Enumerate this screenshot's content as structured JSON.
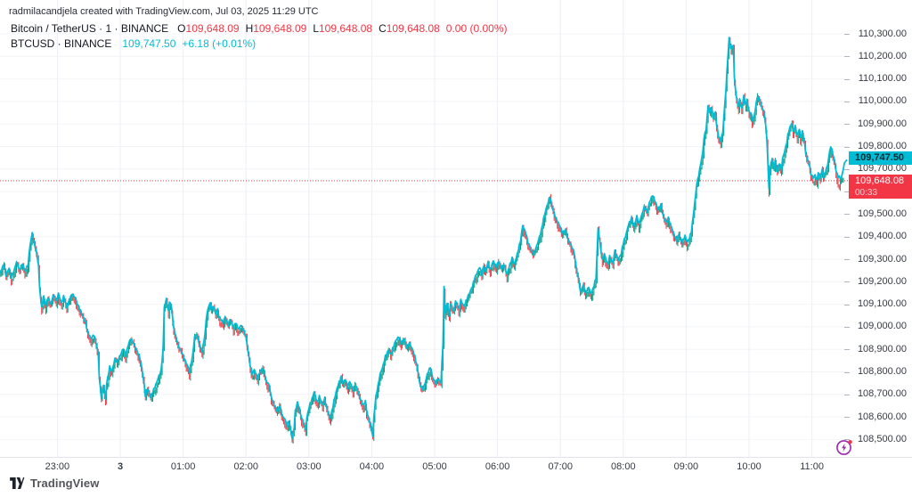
{
  "watermark": {
    "text": "radmilacandjela created with TradingView.com, Jul 03, 2025 11:29 UTC"
  },
  "legend": {
    "row1": {
      "title": "Bitcoin / TetherUS · 1 · BINANCE",
      "ohlc": [
        {
          "k": "O",
          "v": "109,648.09"
        },
        {
          "k": "H",
          "v": "109,648.09"
        },
        {
          "k": "L",
          "v": "109,648.08"
        },
        {
          "k": "C",
          "v": "109,648.08"
        }
      ],
      "change": "0.00 (0.00%)"
    },
    "row2": {
      "title": "BTCUSD · BINANCE",
      "price": "109,747.50",
      "change": "+6.18 (+0.01%)"
    }
  },
  "price_tags": {
    "line": {
      "value": "109,747.50"
    },
    "last": {
      "value": "109,648.08",
      "countdown": "00:33"
    }
  },
  "logo": {
    "text": "TradingView"
  },
  "colors": {
    "line": "#00BCD4",
    "candle_down": "#F23645",
    "candle_up": "#089981",
    "tag_line_bg": "#00BCD4",
    "tag_last_bg": "#F23645",
    "grid_vertical": "#eceff4",
    "grid_horizontal": "#f2f4f7",
    "axis_text": "#363a45",
    "dotted_last_price": "#F23645",
    "streaming_icon": "#9C27B0",
    "streaming_dot": "#F23645"
  },
  "chart_data": {
    "type": "line",
    "title": "Bitcoin / TetherUS 1m BINANCE with BTCUSD BINANCE overlay",
    "series_line_name": "BTCUSD · BINANCE",
    "series_candles_name": "Bitcoin / TetherUS · 1 · BINANCE",
    "interval_minutes": 1,
    "last_price_line": 109747.5,
    "last_price_candles": 109648.08,
    "price_axis_ticks": [
      110300,
      110200,
      110100,
      110000,
      109900,
      109800,
      109700,
      109600,
      109500,
      109400,
      109300,
      109200,
      109100,
      109000,
      108900,
      108800,
      108700,
      108600,
      108500
    ],
    "time_axis_ticks": [
      {
        "t": -60,
        "label": "23:00"
      },
      {
        "t": 0,
        "label": "3",
        "bold": true
      },
      {
        "t": 60,
        "label": "01:00"
      },
      {
        "t": 120,
        "label": "02:00"
      },
      {
        "t": 180,
        "label": "03:00"
      },
      {
        "t": 240,
        "label": "04:00"
      },
      {
        "t": 300,
        "label": "05:00"
      },
      {
        "t": 360,
        "label": "06:00"
      },
      {
        "t": 420,
        "label": "07:00"
      },
      {
        "t": 480,
        "label": "08:00"
      },
      {
        "t": 540,
        "label": "09:00"
      },
      {
        "t": 600,
        "label": "10:00"
      },
      {
        "t": 660,
        "label": "11:00"
      }
    ],
    "t_unit": "minutes from 2025-07-03 00:00 UTC",
    "ylim": [
      108453,
      110450
    ],
    "points": [
      [
        -115,
        109237
      ],
      [
        -111,
        109276
      ],
      [
        -109,
        109229
      ],
      [
        -106,
        109261
      ],
      [
        -104,
        109221
      ],
      [
        -101,
        109253
      ],
      [
        -99,
        109288
      ],
      [
        -96,
        109253
      ],
      [
        -93,
        109280
      ],
      [
        -91,
        109245
      ],
      [
        -88,
        109276
      ],
      [
        -86,
        109363
      ],
      [
        -84,
        109415
      ],
      [
        -82,
        109371
      ],
      [
        -80,
        109332
      ],
      [
        -78,
        109276
      ],
      [
        -77,
        109177
      ],
      [
        -75,
        109086
      ],
      [
        -73,
        109134
      ],
      [
        -71,
        109094
      ],
      [
        -69,
        109130
      ],
      [
        -66,
        109098
      ],
      [
        -64,
        109142
      ],
      [
        -61,
        109114
      ],
      [
        -59,
        109146
      ],
      [
        -56,
        109106
      ],
      [
        -54,
        109134
      ],
      [
        -51,
        109086
      ],
      [
        -49,
        109114
      ],
      [
        -46,
        109146
      ],
      [
        -43,
        109130
      ],
      [
        -41,
        109102
      ],
      [
        -38,
        109071
      ],
      [
        -36,
        109051
      ],
      [
        -33,
        109019
      ],
      [
        -31,
        108976
      ],
      [
        -28,
        108948
      ],
      [
        -25,
        108964
      ],
      [
        -23,
        108928
      ],
      [
        -21,
        108881
      ],
      [
        -20,
        108774
      ],
      [
        -18,
        108687
      ],
      [
        -16,
        108743
      ],
      [
        -14,
        108679
      ],
      [
        -13,
        108747
      ],
      [
        -10,
        108822
      ],
      [
        -8,
        108802
      ],
      [
        -5,
        108857
      ],
      [
        -3,
        108841
      ],
      [
        0,
        108873
      ],
      [
        3,
        108905
      ],
      [
        5,
        108873
      ],
      [
        8,
        108924
      ],
      [
        10,
        108948
      ],
      [
        13,
        108924
      ],
      [
        15,
        108900
      ],
      [
        18,
        108873
      ],
      [
        20,
        108834
      ],
      [
        22,
        108774
      ],
      [
        24,
        108695
      ],
      [
        26,
        108727
      ],
      [
        29,
        108687
      ],
      [
        31,
        108711
      ],
      [
        34,
        108743
      ],
      [
        36,
        108770
      ],
      [
        39,
        108806
      ],
      [
        41,
        108909
      ],
      [
        42,
        109086
      ],
      [
        44,
        109122
      ],
      [
        46,
        109067
      ],
      [
        47,
        109114
      ],
      [
        49,
        109086
      ],
      [
        51,
        108996
      ],
      [
        53,
        108956
      ],
      [
        56,
        108909
      ],
      [
        59,
        108885
      ],
      [
        61,
        108857
      ],
      [
        64,
        108830
      ],
      [
        66,
        108802
      ],
      [
        69,
        108869
      ],
      [
        71,
        108956
      ],
      [
        73,
        108968
      ],
      [
        76,
        108916
      ],
      [
        78,
        108889
      ],
      [
        81,
        108968
      ],
      [
        82,
        109035
      ],
      [
        84,
        109086
      ],
      [
        86,
        109106
      ],
      [
        87,
        109075
      ],
      [
        89,
        109094
      ],
      [
        91,
        109059
      ],
      [
        93,
        109079
      ],
      [
        94,
        109047
      ],
      [
        98,
        109019
      ],
      [
        100,
        109043
      ],
      [
        103,
        109008
      ],
      [
        105,
        109035
      ],
      [
        108,
        108996
      ],
      [
        110,
        109019
      ],
      [
        113,
        108988
      ],
      [
        115,
        109008
      ],
      [
        118,
        108980
      ],
      [
        120,
        108956
      ],
      [
        122,
        108889
      ],
      [
        124,
        108830
      ],
      [
        126,
        108790
      ],
      [
        128,
        108810
      ],
      [
        131,
        108770
      ],
      [
        133,
        108798
      ],
      [
        136,
        108818
      ],
      [
        138,
        108790
      ],
      [
        139,
        108759
      ],
      [
        142,
        108743
      ],
      [
        144,
        108691
      ],
      [
        147,
        108652
      ],
      [
        150,
        108624
      ],
      [
        152,
        108652
      ],
      [
        155,
        108600
      ],
      [
        157,
        108593
      ],
      [
        159,
        108561
      ],
      [
        161,
        108585
      ],
      [
        164,
        108506
      ],
      [
        166,
        108553
      ],
      [
        167,
        108624
      ],
      [
        169,
        108664
      ],
      [
        171,
        108640
      ],
      [
        172,
        108612
      ],
      [
        174,
        108585
      ],
      [
        177,
        108545
      ],
      [
        178,
        108593
      ],
      [
        180,
        108640
      ],
      [
        183,
        108679
      ],
      [
        185,
        108711
      ],
      [
        188,
        108664
      ],
      [
        190,
        108691
      ],
      [
        193,
        108652
      ],
      [
        195,
        108679
      ],
      [
        197,
        108640
      ],
      [
        199,
        108612
      ],
      [
        200,
        108593
      ],
      [
        202,
        108624
      ],
      [
        204,
        108671
      ],
      [
        206,
        108711
      ],
      [
        208,
        108743
      ],
      [
        211,
        108778
      ],
      [
        212,
        108751
      ],
      [
        215,
        108766
      ],
      [
        217,
        108731
      ],
      [
        219,
        108759
      ],
      [
        222,
        108719
      ],
      [
        224,
        108743
      ],
      [
        227,
        108711
      ],
      [
        229,
        108679
      ],
      [
        232,
        108652
      ],
      [
        234,
        108671
      ],
      [
        235,
        108632
      ],
      [
        237,
        108593
      ],
      [
        239,
        108565
      ],
      [
        241,
        108513
      ],
      [
        242,
        108600
      ],
      [
        244,
        108691
      ],
      [
        246,
        108739
      ],
      [
        248,
        108790
      ],
      [
        251,
        108830
      ],
      [
        253,
        108869
      ],
      [
        256,
        108897
      ],
      [
        258,
        108877
      ],
      [
        261,
        108916
      ],
      [
        263,
        108940
      ],
      [
        266,
        108956
      ],
      [
        268,
        108928
      ],
      [
        271,
        108948
      ],
      [
        273,
        108909
      ],
      [
        276,
        108928
      ],
      [
        279,
        108897
      ],
      [
        281,
        108869
      ],
      [
        283,
        108830
      ],
      [
        285,
        108774
      ],
      [
        286,
        108743
      ],
      [
        289,
        108723
      ],
      [
        291,
        108751
      ],
      [
        293,
        108790
      ],
      [
        296,
        108822
      ],
      [
        298,
        108774
      ],
      [
        301,
        108751
      ],
      [
        303,
        108770
      ],
      [
        306,
        108751
      ],
      [
        308,
        108929
      ],
      [
        309,
        109174
      ],
      [
        310,
        109067
      ],
      [
        312,
        109106
      ],
      [
        314,
        109047
      ],
      [
        315,
        109106
      ],
      [
        318,
        109067
      ],
      [
        320,
        109114
      ],
      [
        323,
        109079
      ],
      [
        325,
        109118
      ],
      [
        328,
        109090
      ],
      [
        331,
        109126
      ],
      [
        333,
        109146
      ],
      [
        336,
        109177
      ],
      [
        338,
        109213
      ],
      [
        341,
        109245
      ],
      [
        343,
        109265
      ],
      [
        345,
        109233
      ],
      [
        347,
        109273
      ],
      [
        348,
        109245
      ],
      [
        351,
        109284
      ],
      [
        353,
        109253
      ],
      [
        356,
        109292
      ],
      [
        359,
        109265
      ],
      [
        361,
        109292
      ],
      [
        364,
        109257
      ],
      [
        366,
        109280
      ],
      [
        369,
        109233
      ],
      [
        371,
        109265
      ],
      [
        374,
        109304
      ],
      [
        376,
        109276
      ],
      [
        379,
        109324
      ],
      [
        382,
        109383
      ],
      [
        384,
        109450
      ],
      [
        387,
        109415
      ],
      [
        389,
        109375
      ],
      [
        392,
        109344
      ],
      [
        394,
        109324
      ],
      [
        397,
        109352
      ],
      [
        399,
        109383
      ],
      [
        402,
        109430
      ],
      [
        404,
        109482
      ],
      [
        407,
        109533
      ],
      [
        410,
        109577
      ],
      [
        412,
        109533
      ],
      [
        415,
        109490
      ],
      [
        417,
        109470
      ],
      [
        420,
        109442
      ],
      [
        422,
        109415
      ],
      [
        425,
        109430
      ],
      [
        427,
        109391
      ],
      [
        430,
        109363
      ],
      [
        433,
        109332
      ],
      [
        435,
        109265
      ],
      [
        438,
        109197
      ],
      [
        439,
        109154
      ],
      [
        442,
        109186
      ],
      [
        444,
        109146
      ],
      [
        447,
        109177
      ],
      [
        449,
        109146
      ],
      [
        451,
        109166
      ],
      [
        454,
        109217
      ],
      [
        456,
        109438
      ],
      [
        458,
        109363
      ],
      [
        460,
        109296
      ],
      [
        462,
        109324
      ],
      [
        465,
        109276
      ],
      [
        467,
        109312
      ],
      [
        470,
        109280
      ],
      [
        472,
        109336
      ],
      [
        475,
        109296
      ],
      [
        478,
        109324
      ],
      [
        480,
        109371
      ],
      [
        483,
        109415
      ],
      [
        485,
        109454
      ],
      [
        488,
        109482
      ],
      [
        490,
        109442
      ],
      [
        493,
        109490
      ],
      [
        495,
        109454
      ],
      [
        498,
        109502
      ],
      [
        500,
        109533
      ],
      [
        503,
        109510
      ],
      [
        505,
        109553
      ],
      [
        508,
        109585
      ],
      [
        511,
        109549
      ],
      [
        513,
        109522
      ],
      [
        516,
        109541
      ],
      [
        518,
        109494
      ],
      [
        521,
        109462
      ],
      [
        523,
        109482
      ],
      [
        526,
        109442
      ],
      [
        528,
        109415
      ],
      [
        531,
        109383
      ],
      [
        533,
        109411
      ],
      [
        536,
        109375
      ],
      [
        539,
        109403
      ],
      [
        541,
        109375
      ],
      [
        543,
        109391
      ],
      [
        545,
        109423
      ],
      [
        547,
        109502
      ],
      [
        549,
        109581
      ],
      [
        550,
        109632
      ],
      [
        552,
        109672
      ],
      [
        554,
        109727
      ],
      [
        556,
        109778
      ],
      [
        557,
        109838
      ],
      [
        559,
        109877
      ],
      [
        561,
        109984
      ],
      [
        563,
        109944
      ],
      [
        564,
        109976
      ],
      [
        566,
        109928
      ],
      [
        568,
        109956
      ],
      [
        569,
        109897
      ],
      [
        571,
        109845
      ],
      [
        573,
        109826
      ],
      [
        575,
        109865
      ],
      [
        576,
        109936
      ],
      [
        578,
        110055
      ],
      [
        580,
        110213
      ],
      [
        581,
        110280
      ],
      [
        583,
        110233
      ],
      [
        585,
        110252
      ],
      [
        586,
        110106
      ],
      [
        588,
        110015
      ],
      [
        590,
        109976
      ],
      [
        591,
        110008
      ],
      [
        593,
        109968
      ],
      [
        595,
        110023
      ],
      [
        597,
        109984
      ],
      [
        598,
        110008
      ],
      [
        600,
        109956
      ],
      [
        602,
        109944
      ],
      [
        603,
        109917
      ],
      [
        605,
        109936
      ],
      [
        607,
        109996
      ],
      [
        608,
        110023
      ],
      [
        610,
        110008
      ],
      [
        612,
        109976
      ],
      [
        614,
        109956
      ],
      [
        615,
        109936
      ],
      [
        617,
        109838
      ],
      [
        619,
        109612
      ],
      [
        620,
        109699
      ],
      [
        622,
        109747
      ],
      [
        624,
        109699
      ],
      [
        625,
        109739
      ],
      [
        627,
        109691
      ],
      [
        629,
        109727
      ],
      [
        631,
        109699
      ],
      [
        632,
        109747
      ],
      [
        634,
        109778
      ],
      [
        636,
        109818
      ],
      [
        637,
        109850
      ],
      [
        639,
        109885
      ],
      [
        641,
        109905
      ],
      [
        642,
        109865
      ],
      [
        644,
        109889
      ],
      [
        646,
        109850
      ],
      [
        648,
        109877
      ],
      [
        649,
        109838
      ],
      [
        651,
        109865
      ],
      [
        653,
        109818
      ],
      [
        654,
        109770
      ],
      [
        656,
        109739
      ],
      [
        658,
        109707
      ],
      [
        659,
        109679
      ],
      [
        661,
        109660
      ],
      [
        663,
        109672
      ],
      [
        665,
        109648
      ],
      [
        666,
        109687
      ],
      [
        668,
        109660
      ],
      [
        670,
        109699
      ],
      [
        671,
        109667
      ],
      [
        673,
        109687
      ],
      [
        675,
        109719
      ],
      [
        677,
        109778
      ],
      [
        678,
        109802
      ],
      [
        680,
        109766
      ],
      [
        682,
        109727
      ],
      [
        683,
        109691
      ],
      [
        685,
        109667
      ],
      [
        688,
        109660
      ],
      [
        690,
        109699
      ],
      [
        691,
        109727
      ],
      [
        693,
        109739
      ]
    ]
  }
}
